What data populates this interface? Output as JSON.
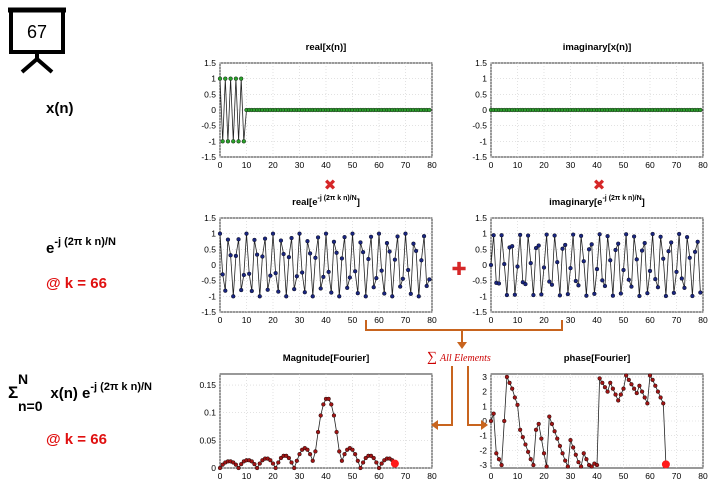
{
  "slide_number": "67",
  "row_labels": {
    "xn": "x(n)",
    "exp_base": "e",
    "exp_power": "-j (2π k n)/N",
    "k_note": "@ k = 66",
    "sum_sigma": "Σ",
    "sum_upper": "N",
    "sum_lower": "n=0",
    "sum_body": "x(n) e",
    "sum_power": "-j (2π k n)/N",
    "k_note2": "@ k = 66"
  },
  "operators": {
    "multiply": "✖",
    "add": "✚",
    "sum_symbol": "∑",
    "sum_text": "All Elements"
  },
  "colors": {
    "accent_red": "#e01010",
    "green_marker": "#2ca02c",
    "navy_marker": "#1a2680",
    "dark_red_marker": "#a01515",
    "arrow_orange": "#c8641e"
  },
  "chart_data": [
    {
      "id": "re_x",
      "type": "line",
      "title": "real[x(n)]",
      "xlim": [
        0,
        80
      ],
      "ylim": [
        -1.5,
        1.5
      ],
      "xticks": [
        "0",
        "10",
        "20",
        "30",
        "40",
        "50",
        "60",
        "70",
        "80"
      ],
      "yticks": [
        "1.5",
        "1",
        "0.5",
        "0",
        "-0.5",
        "-1",
        "-1.5"
      ],
      "marker_color": "#2ca02c",
      "grid": true,
      "x": [
        0,
        1,
        2,
        3,
        4,
        5,
        6,
        7,
        8,
        9,
        10,
        11,
        12,
        13,
        14,
        15,
        16,
        17,
        18,
        19,
        20,
        21,
        22,
        23,
        24,
        25,
        26,
        27,
        28,
        29,
        30,
        31,
        32,
        33,
        34,
        35,
        36,
        37,
        38,
        39,
        40,
        41,
        42,
        43,
        44,
        45,
        46,
        47,
        48,
        49,
        50,
        51,
        52,
        53,
        54,
        55,
        56,
        57,
        58,
        59,
        60,
        61,
        62,
        63,
        64,
        65,
        66,
        67,
        68,
        69,
        70,
        71,
        72,
        73,
        74,
        75,
        76,
        77,
        78,
        79
      ],
      "y": [
        1,
        -1,
        1,
        -1,
        1,
        -1,
        1,
        -1,
        1,
        -1,
        0,
        0,
        0,
        0,
        0,
        0,
        0,
        0,
        0,
        0,
        0,
        0,
        0,
        0,
        0,
        0,
        0,
        0,
        0,
        0,
        0,
        0,
        0,
        0,
        0,
        0,
        0,
        0,
        0,
        0,
        0,
        0,
        0,
        0,
        0,
        0,
        0,
        0,
        0,
        0,
        0,
        0,
        0,
        0,
        0,
        0,
        0,
        0,
        0,
        0,
        0,
        0,
        0,
        0,
        0,
        0,
        0,
        0,
        0,
        0,
        0,
        0,
        0,
        0,
        0,
        0,
        0,
        0,
        0,
        0
      ]
    },
    {
      "id": "im_x",
      "type": "line",
      "title": "imaginary[x(n)]",
      "xlim": [
        0,
        80
      ],
      "ylim": [
        -1.5,
        1.5
      ],
      "xticks": [
        "0",
        "10",
        "20",
        "30",
        "40",
        "50",
        "60",
        "70",
        "80"
      ],
      "yticks": [
        "1.5",
        "1",
        "0.5",
        "0",
        "-0.5",
        "-1",
        "-1.5"
      ],
      "marker_color": "#2ca02c",
      "grid": true,
      "x": [
        0,
        1,
        2,
        3,
        4,
        5,
        6,
        7,
        8,
        9,
        10,
        11,
        12,
        13,
        14,
        15,
        16,
        17,
        18,
        19,
        20,
        21,
        22,
        23,
        24,
        25,
        26,
        27,
        28,
        29,
        30,
        31,
        32,
        33,
        34,
        35,
        36,
        37,
        38,
        39,
        40,
        41,
        42,
        43,
        44,
        45,
        46,
        47,
        48,
        49,
        50,
        51,
        52,
        53,
        54,
        55,
        56,
        57,
        58,
        59,
        60,
        61,
        62,
        63,
        64,
        65,
        66,
        67,
        68,
        69,
        70,
        71,
        72,
        73,
        74,
        75,
        76,
        77,
        78,
        79
      ],
      "y": [
        0,
        0,
        0,
        0,
        0,
        0,
        0,
        0,
        0,
        0,
        0,
        0,
        0,
        0,
        0,
        0,
        0,
        0,
        0,
        0,
        0,
        0,
        0,
        0,
        0,
        0,
        0,
        0,
        0,
        0,
        0,
        0,
        0,
        0,
        0,
        0,
        0,
        0,
        0,
        0,
        0,
        0,
        0,
        0,
        0,
        0,
        0,
        0,
        0,
        0,
        0,
        0,
        0,
        0,
        0,
        0,
        0,
        0,
        0,
        0,
        0,
        0,
        0,
        0,
        0,
        0,
        0,
        0,
        0,
        0,
        0,
        0,
        0,
        0,
        0,
        0,
        0,
        0,
        0,
        0
      ]
    },
    {
      "id": "re_exp",
      "type": "line",
      "title": "real[e^-j (2π k n)/N]",
      "title_base": "real[e",
      "title_sup": "-j (2π k n)/N",
      "title_end": "]",
      "xlim": [
        0,
        80
      ],
      "ylim": [
        -1.5,
        1.5
      ],
      "xticks": [
        "0",
        "10",
        "20",
        "30",
        "40",
        "50",
        "60",
        "70",
        "80"
      ],
      "yticks": [
        "1.5",
        "1",
        "0.5",
        "0",
        "-0.5",
        "-1",
        "-1.5"
      ],
      "marker_color": "#1a2680",
      "grid": true,
      "x": [
        0,
        1,
        2,
        3,
        4,
        5,
        6,
        7,
        8,
        9,
        10,
        11,
        12,
        13,
        14,
        15,
        16,
        17,
        18,
        19,
        20,
        21,
        22,
        23,
        24,
        25,
        26,
        27,
        28,
        29,
        30,
        31,
        32,
        33,
        34,
        35,
        36,
        37,
        38,
        39,
        40,
        41,
        42,
        43,
        44,
        45,
        46,
        47,
        48,
        49,
        50,
        51,
        52,
        53,
        54,
        55,
        56,
        57,
        58,
        59,
        60,
        61,
        62,
        63,
        64,
        65,
        66,
        67,
        68,
        69,
        70,
        71,
        72,
        73,
        74,
        75,
        76,
        77,
        78,
        79
      ],
      "y": [
        1,
        -0.3,
        -0.82,
        0.81,
        0.31,
        -1,
        0.29,
        0.82,
        -0.8,
        -0.32,
        1,
        -0.28,
        -0.83,
        0.8,
        0.33,
        -1,
        0.27,
        0.84,
        -0.79,
        -0.34,
        1,
        -0.26,
        -0.85,
        0.78,
        0.35,
        -1,
        0.25,
        0.86,
        -0.77,
        -0.36,
        1,
        -0.24,
        -0.87,
        0.76,
        0.37,
        -1,
        0.23,
        0.88,
        -0.75,
        -0.38,
        1,
        -0.22,
        -0.88,
        0.74,
        0.39,
        -1,
        0.21,
        0.89,
        -0.73,
        -0.4,
        1,
        -0.2,
        -0.9,
        0.72,
        0.41,
        -1,
        0.19,
        0.9,
        -0.71,
        -0.42,
        1,
        -0.18,
        -0.91,
        0.7,
        0.43,
        -1,
        0.17,
        0.91,
        -0.69,
        -0.44,
        1,
        -0.16,
        -0.92,
        0.68,
        0.45,
        -1,
        0.15,
        0.92,
        -0.67,
        -0.46
      ]
    },
    {
      "id": "im_exp",
      "type": "line",
      "title": "imaginary[e^-j (2π k n)/N]",
      "title_base": "imaginary[e",
      "title_sup": "-j (2π k n)/N",
      "title_end": "]",
      "xlim": [
        0,
        80
      ],
      "ylim": [
        -1.5,
        1.5
      ],
      "xticks": [
        "0",
        "10",
        "20",
        "30",
        "40",
        "50",
        "60",
        "70",
        "80"
      ],
      "yticks": [
        "1.5",
        "1",
        "0.5",
        "0",
        "-0.5",
        "-1",
        "-1.5"
      ],
      "marker_color": "#1a2680",
      "grid": true,
      "x": [
        0,
        1,
        2,
        3,
        4,
        5,
        6,
        7,
        8,
        9,
        10,
        11,
        12,
        13,
        14,
        15,
        16,
        17,
        18,
        19,
        20,
        21,
        22,
        23,
        24,
        25,
        26,
        27,
        28,
        29,
        30,
        31,
        32,
        33,
        34,
        35,
        36,
        37,
        38,
        39,
        40,
        41,
        42,
        43,
        44,
        45,
        46,
        47,
        48,
        49,
        50,
        51,
        52,
        53,
        54,
        55,
        56,
        57,
        58,
        59,
        60,
        61,
        62,
        63,
        64,
        65,
        66,
        67,
        68,
        69,
        70,
        71,
        72,
        73,
        74,
        75,
        76,
        77,
        78,
        79
      ],
      "y": [
        0,
        0.95,
        -0.57,
        -0.59,
        0.95,
        0.03,
        -0.96,
        0.56,
        0.6,
        -0.95,
        -0.05,
        0.96,
        -0.55,
        -0.61,
        0.94,
        0.06,
        -0.96,
        0.54,
        0.62,
        -0.94,
        -0.08,
        0.97,
        -0.53,
        -0.63,
        0.94,
        0.09,
        -0.97,
        0.52,
        0.64,
        -0.93,
        -0.1,
        0.97,
        -0.51,
        -0.65,
        0.93,
        0.12,
        -0.98,
        0.5,
        0.66,
        -0.92,
        -0.13,
        0.98,
        -0.49,
        -0.67,
        0.92,
        0.15,
        -0.98,
        0.48,
        0.68,
        -0.91,
        -0.16,
        0.98,
        -0.47,
        -0.69,
        0.91,
        0.18,
        -0.99,
        0.46,
        0.7,
        -0.9,
        -0.19,
        0.99,
        -0.45,
        -0.71,
        0.9,
        0.2,
        -0.99,
        0.44,
        0.72,
        -0.89,
        -0.22,
        0.99,
        -0.43,
        -0.73,
        0.89,
        0.23,
        -0.99,
        0.42,
        0.74,
        -0.88
      ]
    },
    {
      "id": "mag",
      "type": "line",
      "title": "Magnitude[Fourier]",
      "xlim": [
        0,
        80
      ],
      "ylim": [
        0,
        0.17
      ],
      "xticks": [
        "0",
        "10",
        "20",
        "30",
        "40",
        "50",
        "60",
        "70",
        "80"
      ],
      "yticks": [
        "0.15",
        "0.1",
        "0.05",
        "0"
      ],
      "ytick_values": [
        0.15,
        0.1,
        0.05,
        0
      ],
      "marker_color": "#a01515",
      "grid": true,
      "highlight": {
        "x": 66,
        "y": 0.008,
        "color": "#ff1a1a"
      },
      "x": [
        0,
        1,
        2,
        3,
        4,
        5,
        6,
        7,
        8,
        9,
        10,
        11,
        12,
        13,
        14,
        15,
        16,
        17,
        18,
        19,
        20,
        21,
        22,
        23,
        24,
        25,
        26,
        27,
        28,
        29,
        30,
        31,
        32,
        33,
        34,
        35,
        36,
        37,
        38,
        39,
        40,
        41,
        42,
        43,
        44,
        45,
        46,
        47,
        48,
        49,
        50,
        51,
        52,
        53,
        54,
        55,
        56,
        57,
        58,
        59,
        60,
        61,
        62,
        63,
        64,
        65,
        66
      ],
      "y": [
        0.0,
        0.006,
        0.01,
        0.012,
        0.012,
        0.01,
        0.006,
        0.0,
        0.007,
        0.012,
        0.014,
        0.014,
        0.012,
        0.007,
        0.0,
        0.008,
        0.014,
        0.017,
        0.017,
        0.014,
        0.008,
        0.0,
        0.01,
        0.018,
        0.022,
        0.022,
        0.018,
        0.01,
        0.0,
        0.013,
        0.025,
        0.033,
        0.036,
        0.033,
        0.025,
        0.013,
        0.03,
        0.065,
        0.095,
        0.115,
        0.125,
        0.125,
        0.115,
        0.095,
        0.065,
        0.03,
        0.013,
        0.025,
        0.033,
        0.036,
        0.033,
        0.025,
        0.013,
        0.0,
        0.01,
        0.018,
        0.022,
        0.022,
        0.018,
        0.01,
        0.0,
        0.008,
        0.014,
        0.017,
        0.017,
        0.014,
        0.008
      ]
    },
    {
      "id": "phase",
      "type": "line",
      "title": "phase[Fourier]",
      "xlim": [
        0,
        80
      ],
      "ylim": [
        -3.2,
        3.2
      ],
      "xticks": [
        "0",
        "10",
        "20",
        "30",
        "40",
        "50",
        "60",
        "70",
        "80"
      ],
      "yticks": [
        "3",
        "2",
        "1",
        "0",
        "-1",
        "-2",
        "-3"
      ],
      "ytick_values": [
        3,
        2,
        1,
        0,
        -1,
        -2,
        -3
      ],
      "marker_color": "#a01515",
      "grid": true,
      "highlight": {
        "x": 66,
        "y": -2.95,
        "color": "#ff1a1a"
      },
      "x": [
        0,
        1,
        2,
        3,
        4,
        5,
        6,
        7,
        8,
        9,
        10,
        11,
        12,
        13,
        14,
        15,
        16,
        17,
        18,
        19,
        20,
        21,
        22,
        23,
        24,
        25,
        26,
        27,
        28,
        29,
        30,
        31,
        32,
        33,
        34,
        35,
        36,
        37,
        38,
        39,
        40,
        41,
        42,
        43,
        44,
        45,
        46,
        47,
        48,
        49,
        50,
        51,
        52,
        53,
        54,
        55,
        56,
        57,
        58,
        59,
        60,
        61,
        62,
        63,
        64,
        65,
        66
      ],
      "y": [
        0,
        0.5,
        -2.2,
        -2.6,
        -3.0,
        0.0,
        3.0,
        2.6,
        2.2,
        1.6,
        1.1,
        -0.6,
        -1.1,
        -1.6,
        -2.1,
        -2.6,
        -3.0,
        -0.6,
        -0.2,
        -1.2,
        -2.2,
        -3.1,
        0.3,
        -0.2,
        -0.7,
        -1.2,
        -1.7,
        -2.2,
        -2.7,
        -3.1,
        -1.3,
        -1.8,
        -2.3,
        -2.8,
        -3.1,
        -2.2,
        -2.6,
        -3.0,
        -3.1,
        -2.9,
        -3.0,
        2.9,
        2.6,
        2.3,
        2.0,
        2.6,
        2.2,
        1.8,
        1.4,
        1.8,
        2.2,
        3.1,
        2.8,
        2.5,
        2.2,
        1.9,
        2.4,
        2.0,
        1.6,
        1.2,
        3.1,
        2.8,
        2.4,
        2.0,
        1.6,
        1.2,
        -2.95
      ]
    }
  ]
}
